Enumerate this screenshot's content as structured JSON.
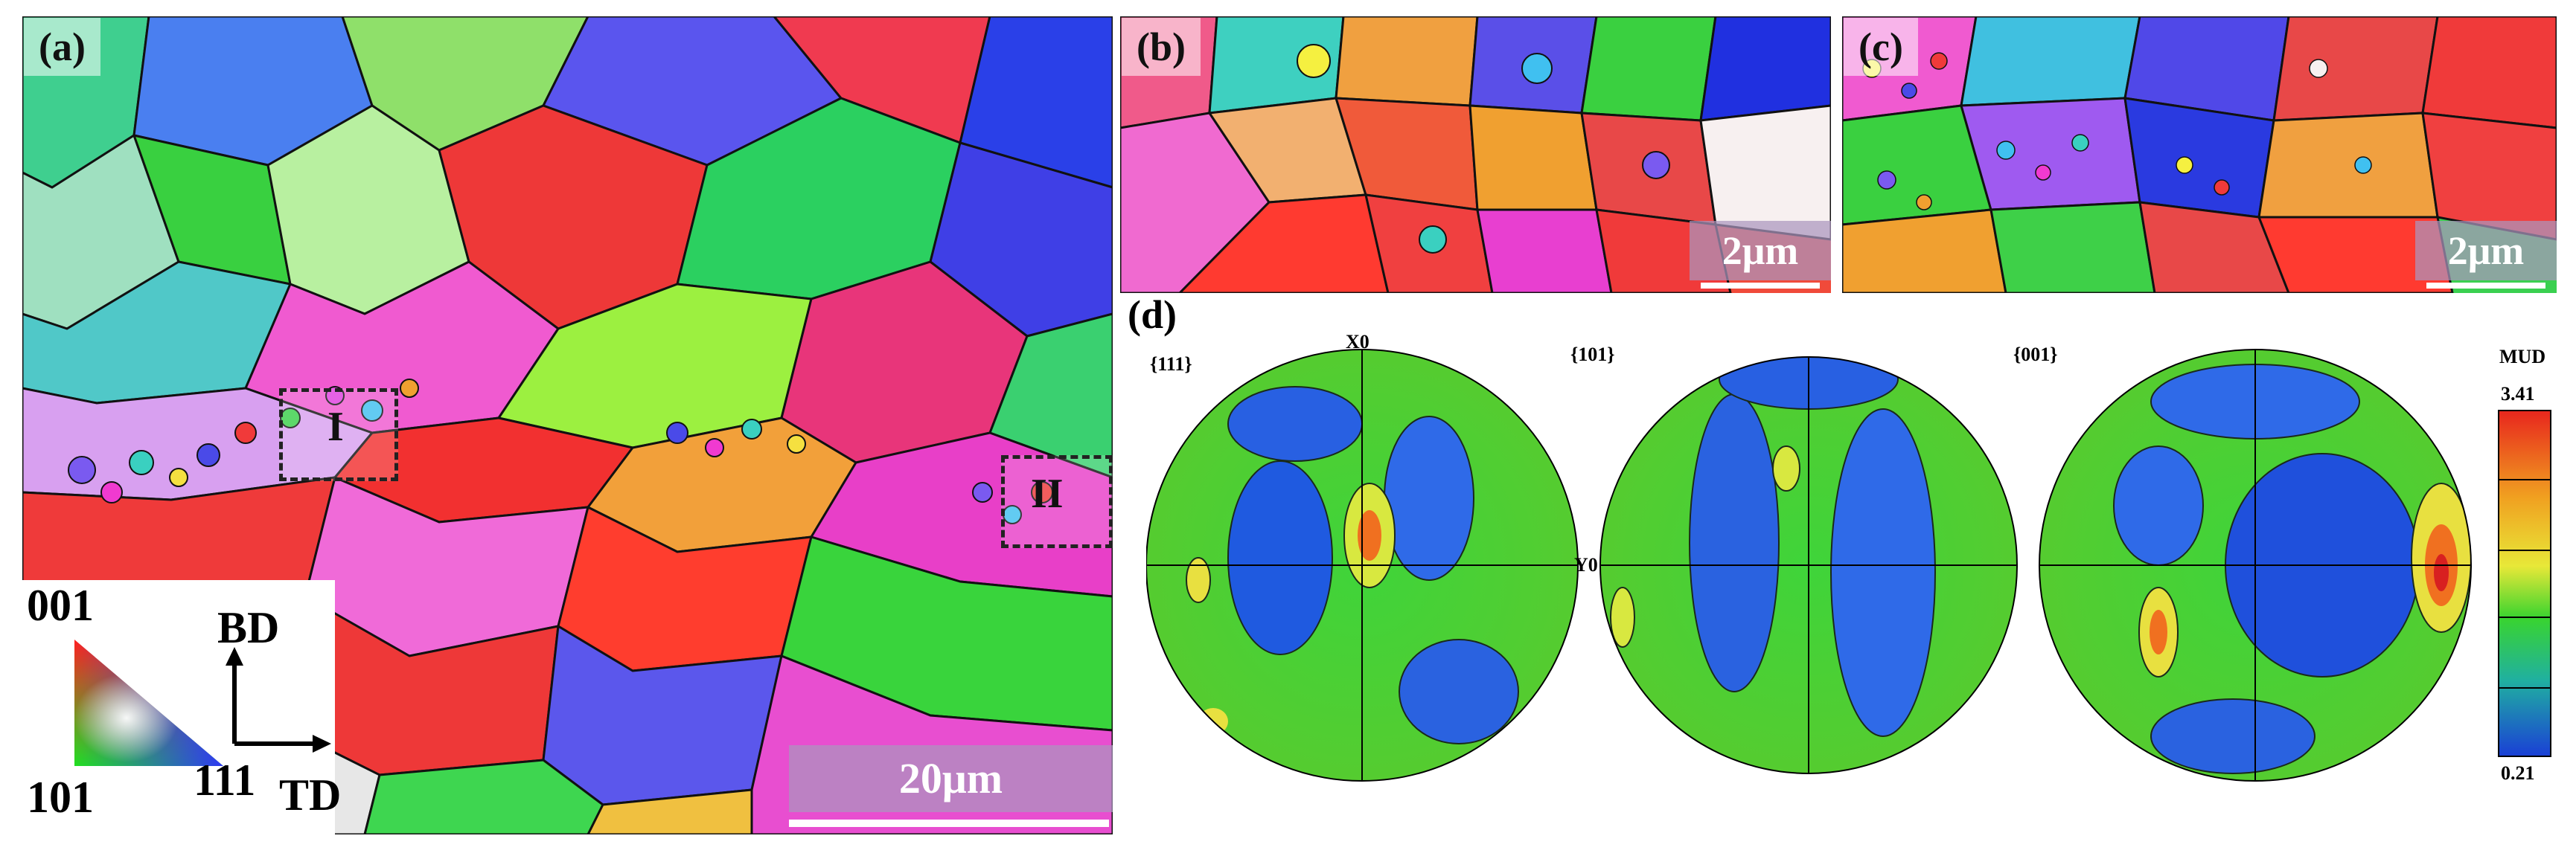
{
  "panels": {
    "a": {
      "label": "(a)",
      "scale": "20μm",
      "roi_1": "I",
      "roi_2": "II"
    },
    "b": {
      "label": "(b)",
      "scale": "2μm"
    },
    "c": {
      "label": "(c)",
      "scale": "2μm"
    },
    "d": {
      "label": "(d)"
    }
  },
  "ipf_legend": {
    "corner_001": "001",
    "corner_101": "101",
    "corner_111": "111",
    "axis_bd": "BD",
    "axis_td": "TD"
  },
  "pole_figures": {
    "titles": [
      "{111}",
      "{101}",
      "{001}"
    ],
    "x_label": "X0",
    "y_label": "Y0",
    "colorbar": {
      "title": "MUD",
      "max": "3.41",
      "min": "0.21"
    }
  },
  "colors": {
    "mud_low": "#1a3fd6",
    "mud_mid": "#39d42f",
    "mud_high": "#e8261d",
    "grain_boundary": "#111111"
  }
}
